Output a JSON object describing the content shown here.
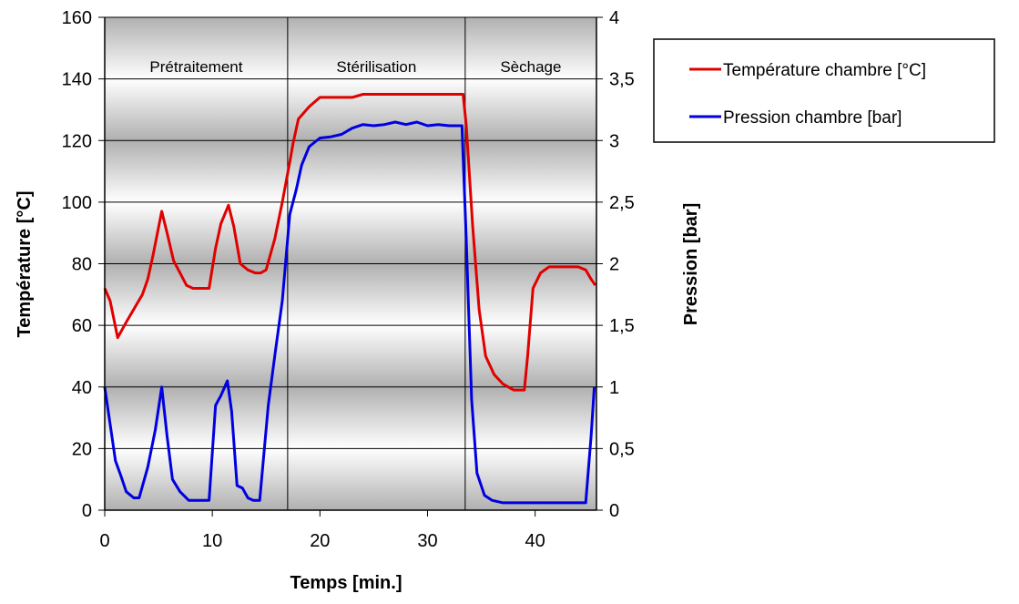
{
  "chart_data": {
    "type": "line",
    "xlabel": "Temps [min.]",
    "ylabel": "Température [°C]",
    "y2label": "Pression [bar]",
    "xlim": [
      0,
      45.7
    ],
    "ylim": [
      0,
      160
    ],
    "y2lim": [
      0,
      4
    ],
    "x_ticks": [
      0,
      10,
      20,
      30,
      40
    ],
    "y_ticks": [
      0,
      20,
      40,
      60,
      80,
      100,
      120,
      140,
      160
    ],
    "y2_ticks": [
      "0",
      "0,5",
      "1",
      "1,5",
      "2",
      "2,5",
      "3",
      "3,5",
      "4"
    ],
    "grid": true,
    "legend_position": "right-top",
    "phases": [
      {
        "label": "Prétraitement",
        "start": 0,
        "end": 17
      },
      {
        "label": "Stérilisation",
        "start": 17,
        "end": 33.5
      },
      {
        "label": "Sèchage",
        "start": 33.5,
        "end": 45.7
      }
    ],
    "series": [
      {
        "name": "Température chambre [°C]",
        "axis": "left",
        "color": "#e00000",
        "points": [
          [
            0,
            72
          ],
          [
            0.5,
            68
          ],
          [
            1.2,
            56
          ],
          [
            2,
            61
          ],
          [
            3,
            67
          ],
          [
            3.5,
            70
          ],
          [
            4,
            75
          ],
          [
            4.5,
            83
          ],
          [
            5.3,
            97
          ],
          [
            5.8,
            90
          ],
          [
            6.4,
            81
          ],
          [
            7,
            77
          ],
          [
            7.6,
            73
          ],
          [
            8.2,
            72
          ],
          [
            9,
            72
          ],
          [
            9.7,
            72
          ],
          [
            10.3,
            85
          ],
          [
            10.8,
            93
          ],
          [
            11.5,
            99
          ],
          [
            12,
            92
          ],
          [
            12.6,
            80
          ],
          [
            13.3,
            78
          ],
          [
            14,
            77
          ],
          [
            14.5,
            77
          ],
          [
            15,
            78
          ],
          [
            15.8,
            88
          ],
          [
            16.5,
            100
          ],
          [
            17.2,
            113
          ],
          [
            17.5,
            119
          ],
          [
            18,
            127
          ],
          [
            19,
            131
          ],
          [
            20,
            134
          ],
          [
            21,
            134
          ],
          [
            22,
            134
          ],
          [
            23,
            134
          ],
          [
            24,
            135
          ],
          [
            25,
            135
          ],
          [
            26,
            135
          ],
          [
            27,
            135
          ],
          [
            28,
            135
          ],
          [
            29,
            135
          ],
          [
            30,
            135
          ],
          [
            31,
            135
          ],
          [
            32,
            135
          ],
          [
            33.3,
            135
          ],
          [
            33.6,
            125
          ],
          [
            34.2,
            92
          ],
          [
            34.8,
            65
          ],
          [
            35.4,
            50
          ],
          [
            36.2,
            44
          ],
          [
            37,
            41
          ],
          [
            38,
            39
          ],
          [
            39,
            39
          ],
          [
            39.3,
            50
          ],
          [
            39.8,
            72
          ],
          [
            40.5,
            77
          ],
          [
            41.3,
            79
          ],
          [
            42,
            79
          ],
          [
            43,
            79
          ],
          [
            44,
            79
          ],
          [
            44.7,
            78
          ],
          [
            45.2,
            75
          ],
          [
            45.6,
            73
          ]
        ]
      },
      {
        "name": "Pression chambre [bar]",
        "axis": "right",
        "color": "#0000e0",
        "points": [
          [
            0,
            1
          ],
          [
            0.5,
            0.7
          ],
          [
            1,
            0.4
          ],
          [
            1.5,
            0.28
          ],
          [
            2,
            0.15
          ],
          [
            2.7,
            0.1
          ],
          [
            3.2,
            0.1
          ],
          [
            4,
            0.35
          ],
          [
            4.7,
            0.65
          ],
          [
            5.3,
            1.0
          ],
          [
            5.8,
            0.6
          ],
          [
            6.3,
            0.25
          ],
          [
            7,
            0.15
          ],
          [
            7.8,
            0.08
          ],
          [
            8.5,
            0.08
          ],
          [
            9.2,
            0.08
          ],
          [
            9.7,
            0.08
          ],
          [
            10.3,
            0.85
          ],
          [
            10.8,
            0.93
          ],
          [
            11.4,
            1.05
          ],
          [
            11.8,
            0.8
          ],
          [
            12.3,
            0.2
          ],
          [
            12.8,
            0.18
          ],
          [
            13.3,
            0.1
          ],
          [
            13.8,
            0.08
          ],
          [
            14.4,
            0.08
          ],
          [
            15.2,
            0.85
          ],
          [
            15.8,
            1.25
          ],
          [
            16.5,
            1.7
          ],
          [
            17.2,
            2.4
          ],
          [
            17.8,
            2.6
          ],
          [
            18.3,
            2.8
          ],
          [
            19,
            2.95
          ],
          [
            20,
            3.02
          ],
          [
            21,
            3.03
          ],
          [
            22,
            3.05
          ],
          [
            23,
            3.1
          ],
          [
            24,
            3.13
          ],
          [
            25,
            3.12
          ],
          [
            26,
            3.13
          ],
          [
            27,
            3.15
          ],
          [
            28,
            3.13
          ],
          [
            29,
            3.15
          ],
          [
            30,
            3.12
          ],
          [
            31,
            3.13
          ],
          [
            32,
            3.12
          ],
          [
            33.2,
            3.12
          ],
          [
            33.6,
            2.2
          ],
          [
            34.1,
            0.9
          ],
          [
            34.6,
            0.3
          ],
          [
            35.3,
            0.12
          ],
          [
            36,
            0.08
          ],
          [
            37,
            0.06
          ],
          [
            38,
            0.06
          ],
          [
            39,
            0.06
          ],
          [
            40,
            0.06
          ],
          [
            41,
            0.06
          ],
          [
            42,
            0.06
          ],
          [
            43,
            0.06
          ],
          [
            44,
            0.06
          ],
          [
            44.7,
            0.06
          ],
          [
            45.2,
            0.6
          ],
          [
            45.5,
            1.0
          ]
        ]
      }
    ]
  }
}
